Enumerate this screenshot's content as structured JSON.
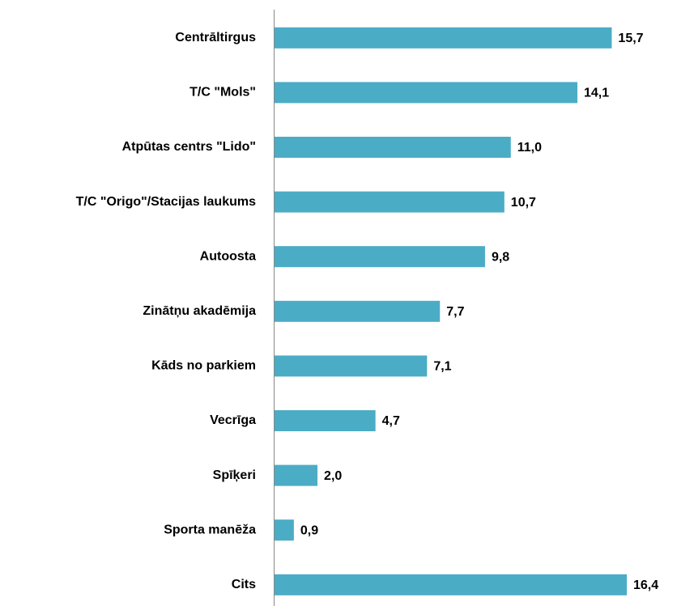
{
  "chart_data": {
    "type": "bar",
    "orientation": "horizontal",
    "categories": [
      "Centrāltirgus",
      "T/C \"Mols\"",
      "Atpūtas centrs \"Lido\"",
      "T/C \"Origo\"/Stacijas laukums",
      "Autoosta",
      "Zinātņu akadēmija",
      "Kāds no parkiem",
      "Vecrīga",
      "Spīķeri",
      "Sporta manēža",
      "Cits"
    ],
    "values": [
      15.7,
      14.1,
      11.0,
      10.7,
      9.8,
      7.7,
      7.1,
      4.7,
      2.0,
      0.9,
      16.4
    ],
    "value_labels": [
      "15,7",
      "14,1",
      "11,0",
      "10,7",
      "9,8",
      "7,7",
      "7,1",
      "4,7",
      "2,0",
      "0,9",
      "16,4"
    ],
    "color": "#4bacc6"
  }
}
